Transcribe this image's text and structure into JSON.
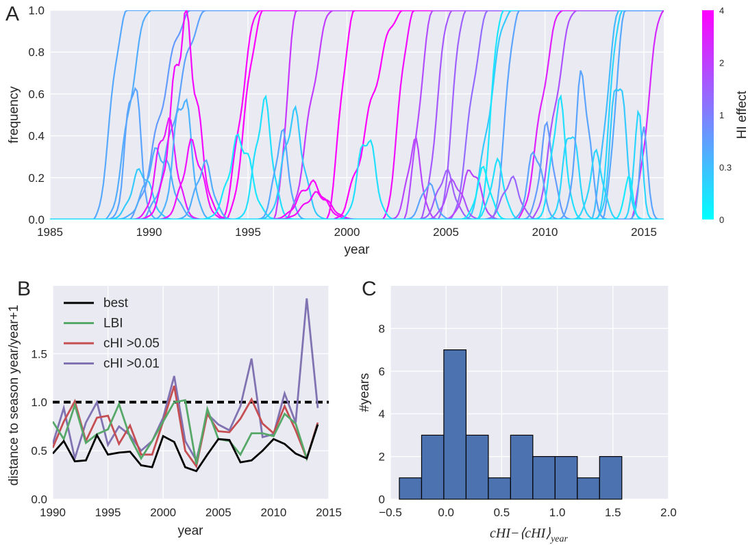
{
  "chart_data": [
    {
      "panel": "A",
      "type": "line",
      "xlabel": "year",
      "ylabel": "frequency",
      "xlim": [
        1985,
        2016
      ],
      "ylim": [
        0,
        1
      ],
      "xticks": [
        "1985",
        "1990",
        "1995",
        "2000",
        "2005",
        "2010",
        "2015"
      ],
      "yticks": [
        "0.0",
        "0.2",
        "0.4",
        "0.6",
        "0.8",
        "1.0"
      ],
      "grid": true,
      "colorbar": {
        "label": "HI effect",
        "ticks": [
          "0",
          "0.3",
          "1",
          "2",
          "4"
        ],
        "colors": [
          "#00ffff",
          "#ff00ff"
        ]
      },
      "series": [
        {
          "kind": "sweep",
          "start": 1987.2,
          "rise": 1.7,
          "hi": 0.55
        },
        {
          "kind": "sweep",
          "start": 1987.8,
          "rise": 2.3,
          "hi": 0.5
        },
        {
          "kind": "sweep",
          "start": 1988.9,
          "rise": 3.3,
          "hi": 0.7
        },
        {
          "kind": "sweep",
          "start": 1989.6,
          "rise": 3.4,
          "hi": 0.62
        },
        {
          "kind": "sweep",
          "start": 1993.6,
          "rise": 2.0,
          "hi": 3.8
        },
        {
          "kind": "sweep",
          "start": 1993.9,
          "rise": 1.9,
          "hi": 4.0
        },
        {
          "kind": "sweep",
          "start": 1996.3,
          "rise": 1.2,
          "hi": 2.3
        },
        {
          "kind": "sweep",
          "start": 1996.9,
          "rise": 2.4,
          "hi": 2.1
        },
        {
          "kind": "sweep",
          "start": 1998.9,
          "rise": 1.5,
          "hi": 3.9
        },
        {
          "kind": "sweep",
          "start": 1999.3,
          "rise": 3.6,
          "hi": 4.0
        },
        {
          "kind": "sweep",
          "start": 2001.8,
          "rise": 1.6,
          "hi": 3.6
        },
        {
          "kind": "sweep",
          "start": 2002.8,
          "rise": 1.6,
          "hi": 1.8
        },
        {
          "kind": "sweep",
          "start": 2003.7,
          "rise": 1.6,
          "hi": 1.6
        },
        {
          "kind": "sweep",
          "start": 2004.6,
          "rise": 1.4,
          "hi": 1.5
        },
        {
          "kind": "sweep",
          "start": 2005.2,
          "rise": 2.0,
          "hi": 1.3
        },
        {
          "kind": "sweep",
          "start": 2006.0,
          "rise": 2.3,
          "hi": 0.25
        },
        {
          "kind": "sweep",
          "start": 2006.6,
          "rise": 1.3,
          "hi": 0.12
        },
        {
          "kind": "sweep",
          "start": 2007.3,
          "rise": 1.4,
          "hi": 0.6
        },
        {
          "kind": "sweep",
          "start": 2008.6,
          "rise": 2.3,
          "hi": 3.0
        },
        {
          "kind": "sweep",
          "start": 2009.3,
          "rise": 2.3,
          "hi": 1.7
        },
        {
          "kind": "sweep",
          "start": 2012.3,
          "rise": 1.5,
          "hi": 0.35
        },
        {
          "kind": "sweep",
          "start": 2012.6,
          "rise": 1.3,
          "hi": 0.2
        },
        {
          "kind": "sweep",
          "start": 2012.9,
          "rise": 1.2,
          "hi": 0.55
        },
        {
          "kind": "sweep",
          "start": 2014.3,
          "rise": 1.7,
          "hi": 2.7
        },
        {
          "kind": "bump",
          "c": 1989.6,
          "w": 0.7,
          "a": 0.23,
          "hi": 0.25
        },
        {
          "kind": "bump",
          "c": 1989.2,
          "w": 0.5,
          "a": 0.67,
          "hi": 0.6
        },
        {
          "kind": "bump",
          "c": 1990.5,
          "w": 0.9,
          "a": 0.32,
          "hi": 0.5
        },
        {
          "kind": "bump",
          "c": 1990.9,
          "w": 0.7,
          "a": 0.46,
          "hi": 3.2
        },
        {
          "kind": "bump",
          "c": 1991.8,
          "w": 0.9,
          "a": 0.92,
          "hi": 3.7
        },
        {
          "kind": "bump",
          "c": 1991.7,
          "w": 0.6,
          "a": 0.6,
          "hi": 0.45
        },
        {
          "kind": "bump",
          "c": 1992.2,
          "w": 0.7,
          "a": 0.35,
          "hi": 3.5
        },
        {
          "kind": "bump",
          "c": 1992.8,
          "w": 0.6,
          "a": 0.26,
          "hi": 0.5
        },
        {
          "kind": "bump",
          "c": 1994.6,
          "w": 0.8,
          "a": 0.38,
          "hi": 0.12
        },
        {
          "kind": "bump",
          "c": 1995.8,
          "w": 0.6,
          "a": 0.54,
          "hi": 0.15
        },
        {
          "kind": "bump",
          "c": 1997.3,
          "w": 0.7,
          "a": 0.49,
          "hi": 0.25
        },
        {
          "kind": "bump",
          "c": 1996.7,
          "w": 0.5,
          "a": 0.4,
          "hi": 0.55
        },
        {
          "kind": "bump",
          "c": 1998.2,
          "w": 0.9,
          "a": 0.17,
          "hi": 3.8
        },
        {
          "kind": "bump",
          "c": 1998.5,
          "w": 0.9,
          "a": 0.12,
          "hi": 3.6
        },
        {
          "kind": "bump",
          "c": 2001.0,
          "w": 0.6,
          "a": 0.4,
          "hi": 0.15
        },
        {
          "kind": "bump",
          "c": 2003.4,
          "w": 0.5,
          "a": 0.36,
          "hi": 1.9
        },
        {
          "kind": "bump",
          "c": 2004.1,
          "w": 0.5,
          "a": 0.17,
          "hi": 0.6
        },
        {
          "kind": "bump",
          "c": 2005.0,
          "w": 0.6,
          "a": 0.22,
          "hi": 1.5
        },
        {
          "kind": "bump",
          "c": 2005.4,
          "w": 0.6,
          "a": 0.18,
          "hi": 1.7
        },
        {
          "kind": "bump",
          "c": 2006.3,
          "w": 0.6,
          "a": 0.24,
          "hi": 1.9
        },
        {
          "kind": "bump",
          "c": 2006.9,
          "w": 0.5,
          "a": 0.23,
          "hi": 0.1
        },
        {
          "kind": "bump",
          "c": 2007.6,
          "w": 0.5,
          "a": 0.26,
          "hi": 0.15
        },
        {
          "kind": "bump",
          "c": 2008.3,
          "w": 0.6,
          "a": 0.19,
          "hi": 1.4
        },
        {
          "kind": "bump",
          "c": 2009.5,
          "w": 0.5,
          "a": 0.33,
          "hi": 0.6
        },
        {
          "kind": "bump",
          "c": 2010.1,
          "w": 0.5,
          "a": 0.42,
          "hi": 0.7
        },
        {
          "kind": "bump",
          "c": 2010.7,
          "w": 0.5,
          "a": 0.55,
          "hi": 0.15
        },
        {
          "kind": "bump",
          "c": 2011.3,
          "w": 0.5,
          "a": 0.44,
          "hi": 0.2
        },
        {
          "kind": "bump",
          "c": 2011.9,
          "w": 0.5,
          "a": 0.67,
          "hi": 0.6
        },
        {
          "kind": "bump",
          "c": 2012.6,
          "w": 0.5,
          "a": 0.3,
          "hi": 0.2
        },
        {
          "kind": "bump",
          "c": 2013.7,
          "w": 0.5,
          "a": 0.7,
          "hi": 0.25
        },
        {
          "kind": "bump",
          "c": 2014.7,
          "w": 0.3,
          "a": 0.5,
          "hi": 0.2
        },
        {
          "kind": "bump",
          "c": 2015.0,
          "w": 0.3,
          "a": 0.4,
          "hi": 0.6
        },
        {
          "kind": "bump",
          "c": 2014.2,
          "w": 0.3,
          "a": 0.2,
          "hi": 0.1
        }
      ]
    },
    {
      "panel": "B",
      "type": "line",
      "xlabel": "year",
      "ylabel": "distance to season year/year+1",
      "xlim": [
        1990,
        2015
      ],
      "ylim": [
        0,
        2.2
      ],
      "xticks": [
        "1990",
        "1995",
        "2000",
        "2005",
        "2010",
        "2015"
      ],
      "yticks": [
        "0.0",
        "0.5",
        "1.0",
        "1.5"
      ],
      "grid": true,
      "legend": "top-left",
      "x": [
        1990,
        1991,
        1992,
        1993,
        1994,
        1995,
        1996,
        1997,
        1998,
        1999,
        2000,
        2001,
        2002,
        2003,
        2004,
        2005,
        2006,
        2007,
        2008,
        2009,
        2010,
        2011,
        2012,
        2013,
        2014
      ],
      "reference": {
        "y": 1.0,
        "style": "dashed",
        "color": "#000000"
      },
      "series": [
        {
          "name": "best",
          "color": "#000000",
          "values": [
            0.47,
            0.6,
            0.39,
            0.4,
            0.66,
            0.46,
            0.48,
            0.49,
            0.35,
            0.33,
            0.65,
            0.59,
            0.33,
            0.29,
            0.46,
            0.62,
            0.61,
            0.38,
            0.4,
            0.5,
            0.62,
            0.57,
            0.47,
            0.42,
            0.77
          ]
        },
        {
          "name": "LBI",
          "color": "#55a868",
          "values": [
            0.8,
            0.62,
            0.97,
            0.58,
            0.67,
            0.72,
            0.98,
            0.64,
            0.42,
            0.6,
            0.8,
            1.0,
            1.02,
            0.36,
            0.93,
            0.62,
            0.6,
            0.46,
            0.68,
            0.68,
            0.65,
            0.88,
            0.78,
            0.42,
            0.77
          ]
        },
        {
          "name": "cHI >0.05",
          "color": "#c44e52",
          "values": [
            0.53,
            0.8,
            1.01,
            0.6,
            0.84,
            0.86,
            0.57,
            0.76,
            0.46,
            0.46,
            0.8,
            1.17,
            0.5,
            0.34,
            0.88,
            0.7,
            0.69,
            0.83,
            1.03,
            0.78,
            0.68,
            0.96,
            0.71,
            0.42,
            0.79
          ]
        },
        {
          "name": "cHI >0.01",
          "color": "#8172b2",
          "values": [
            0.57,
            0.94,
            0.42,
            0.79,
            1.0,
            0.56,
            0.75,
            0.66,
            0.5,
            0.6,
            0.84,
            1.27,
            0.6,
            0.4,
            0.88,
            0.77,
            0.71,
            0.96,
            1.45,
            0.64,
            0.67,
            1.09,
            0.79,
            2.07,
            0.94
          ]
        }
      ]
    },
    {
      "panel": "C",
      "type": "bar",
      "subtype": "histogram",
      "xlabel": "cHI−⟨cHI⟩year",
      "ylabel": "#years",
      "xlim": [
        -0.5,
        2.0
      ],
      "ylim": [
        0,
        10
      ],
      "xticks": [
        "−0.5",
        "0.0",
        "0.5",
        "1.0",
        "1.5",
        "2.0"
      ],
      "yticks": [
        "0",
        "2",
        "4",
        "6",
        "8"
      ],
      "grid": true,
      "color": "#4c72b0",
      "bin_edges": [
        -0.42,
        -0.22,
        -0.02,
        0.18,
        0.38,
        0.58,
        0.78,
        0.98,
        1.18,
        1.38,
        1.58
      ],
      "values": [
        1,
        3,
        7,
        3,
        1,
        3,
        2,
        2,
        1,
        2
      ]
    }
  ],
  "panels": {
    "A": "A",
    "B": "B",
    "C": "C"
  },
  "panel_c_xlabel": {
    "main": "cHI−⟨cHI⟩",
    "sub": "year"
  }
}
